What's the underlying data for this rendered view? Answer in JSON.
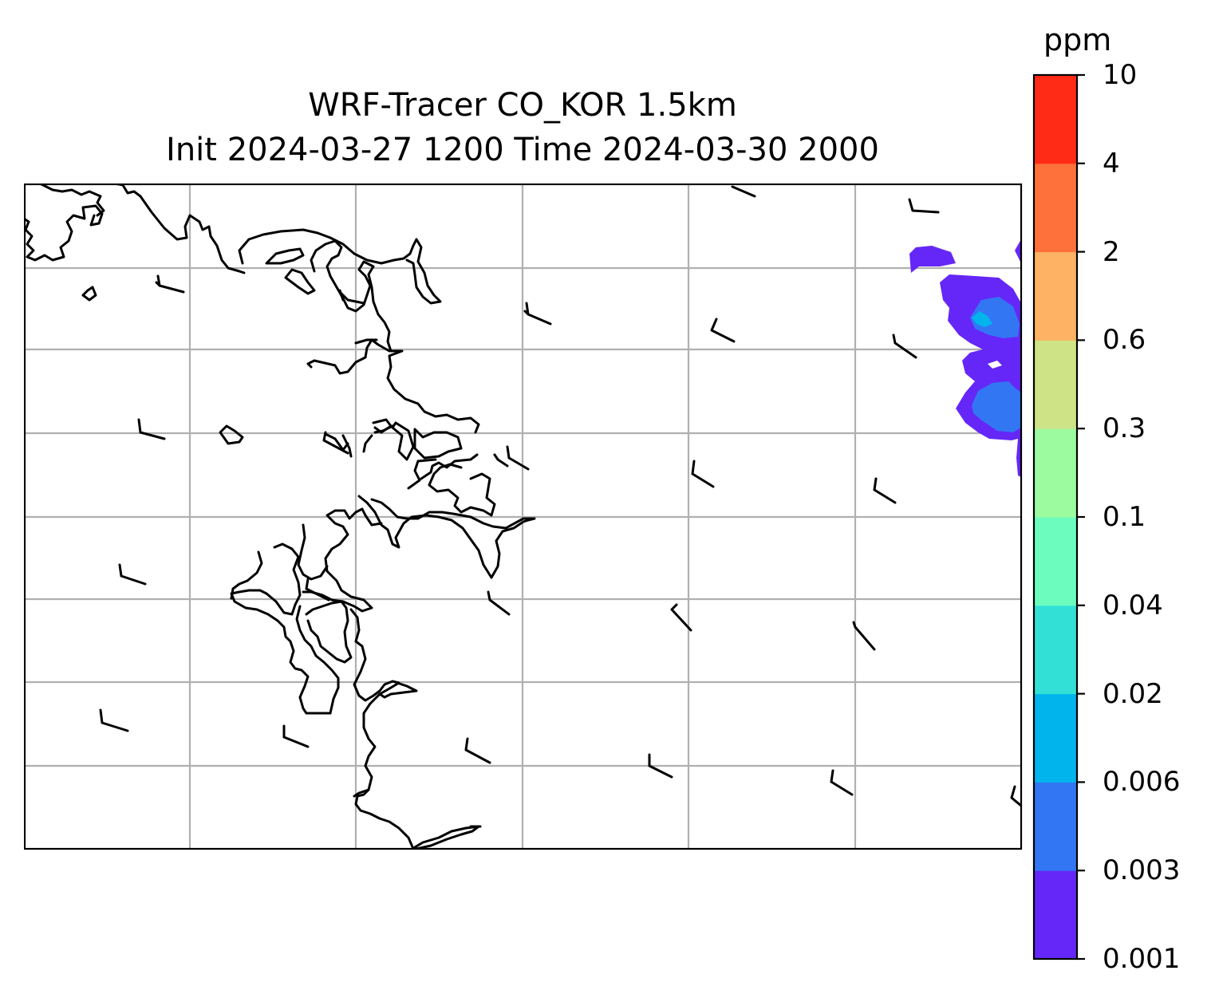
{
  "figure": {
    "title_line1": "WRF-Tracer CO_KOR 1.5km",
    "title_line2": "Init 2024-03-27 1200 Time 2024-03-30 2000"
  },
  "colorbar": {
    "unit": "ppm",
    "levels": [
      "0.001",
      "0.003",
      "0.006",
      "0.02",
      "0.04",
      "0.1",
      "0.3",
      "0.6",
      "2",
      "4",
      "10"
    ],
    "colors": [
      "#6527f7",
      "#3376f3",
      "#01b4ec",
      "#32e0d6",
      "#6cfdbe",
      "#9dfb9f",
      "#cde386",
      "#fdb264",
      "#ff713a",
      "#ff2b17"
    ]
  },
  "map": {
    "coastline_color": "#000000",
    "grid_color": "#b0b0b0",
    "gridlines": true,
    "wind_barbs": 24
  }
}
